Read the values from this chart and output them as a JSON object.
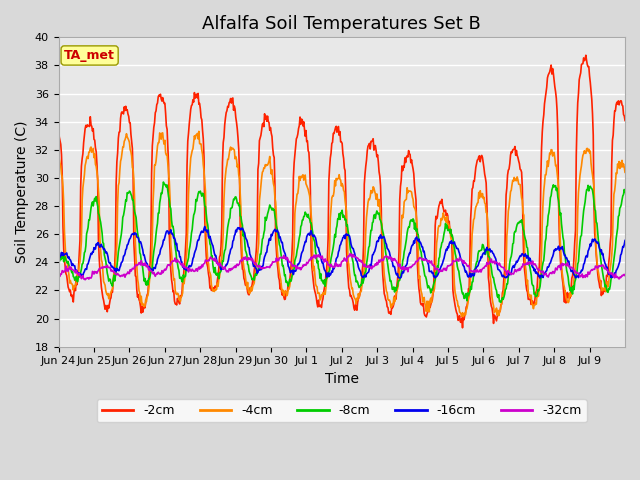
{
  "title": "Alfalfa Soil Temperatures Set B",
  "xlabel": "Time",
  "ylabel": "Soil Temperature (C)",
  "ylim": [
    18,
    40
  ],
  "yticks": [
    18,
    20,
    22,
    24,
    26,
    28,
    30,
    32,
    34,
    36,
    38,
    40
  ],
  "x_tick_labels": [
    "Jun 24",
    "Jun 25",
    "Jun 26",
    "Jun 27",
    "Jun 28",
    "Jun 29",
    "Jun 30",
    "Jul 1",
    "Jul 2",
    "Jul 3",
    "Jul 4",
    "Jul 5",
    "Jul 6",
    "Jul 7",
    "Jul 8",
    "Jul 9"
  ],
  "colors": {
    "-2cm": "#ff2200",
    "-4cm": "#ff8800",
    "-8cm": "#00cc00",
    "-16cm": "#0000ee",
    "-32cm": "#cc00cc"
  },
  "legend_labels": [
    "-2cm",
    "-4cm",
    "-8cm",
    "-16cm",
    "-32cm"
  ],
  "fig_bg_color": "#d9d9d9",
  "plot_bg_color": "#e8e8e8",
  "annotation_text": "TA_met",
  "annotation_color": "#cc0000",
  "annotation_bg": "#ffff99",
  "title_fontsize": 13,
  "axis_label_fontsize": 10,
  "tick_fontsize": 8,
  "legend_fontsize": 9,
  "linewidth": 1.2
}
